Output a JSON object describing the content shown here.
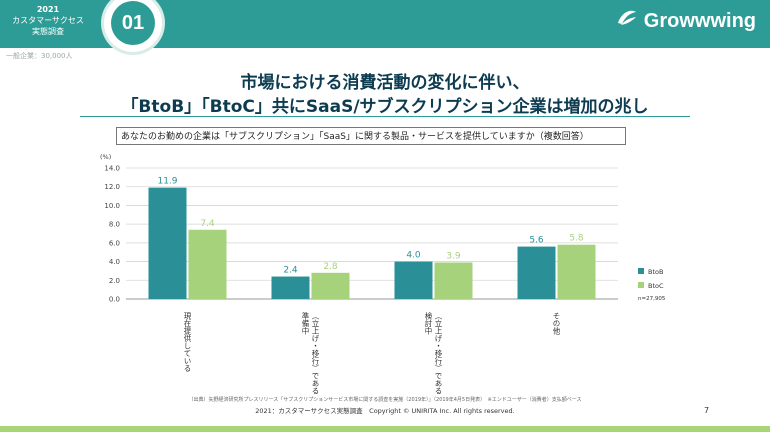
{
  "header": {
    "survey_year": "2021",
    "survey_line1": "カスタマーサクセス",
    "survey_line2": "実態調査",
    "section_number": "01",
    "logo_text": "Growwwing",
    "sample_note": "一般企業：30,000人"
  },
  "title": {
    "line1": "市場における消費活動の変化に伴い、",
    "line2": "「BtoB」「BtoC」共にSaaS/サブスクリプション企業は増加の兆し"
  },
  "question": "あなたのお勤めの企業は「サブスクリプション」「SaaS」に関する製品・サービスを提供していますか（複数回答）",
  "chart_data": {
    "type": "bar",
    "ylabel": "(%)",
    "ylim": [
      0,
      14
    ],
    "yticks": [
      "0.0",
      "2.0",
      "4.0",
      "6.0",
      "8.0",
      "10.0",
      "12.0",
      "14.0"
    ],
    "grid": true,
    "legend_position": "right",
    "categories": [
      "現在提供している",
      "準備中\n（立上げ・移行）である",
      "検討中\n（立上げ・移行）である",
      "その他"
    ],
    "series": [
      {
        "name": "BtoB",
        "color": "#2a8f97",
        "values": [
          11.9,
          2.4,
          4.0,
          5.6
        ],
        "labels": [
          "11.9",
          "2.4",
          "4.0",
          "5.6"
        ]
      },
      {
        "name": "BtoC",
        "color": "#a7d27c",
        "values": [
          7.4,
          2.8,
          3.9,
          5.8
        ],
        "labels": [
          "7.4",
          "2.8",
          "3.9",
          "5.8"
        ]
      }
    ],
    "sample_size": "n=27,905"
  },
  "footer": {
    "source_note": "（出典）矢野経済研究所プレスリリース「サブスクリプションサービス市場に関する調査を実施（2019年）」（2019年4月5日発表）　※エンドユーザー（消費者）支払額ベース",
    "copyright": "2021：カスタマーサクセス実態調査　Copyright © UNIRITA Inc. All rights reserved.",
    "page_number": "7"
  }
}
